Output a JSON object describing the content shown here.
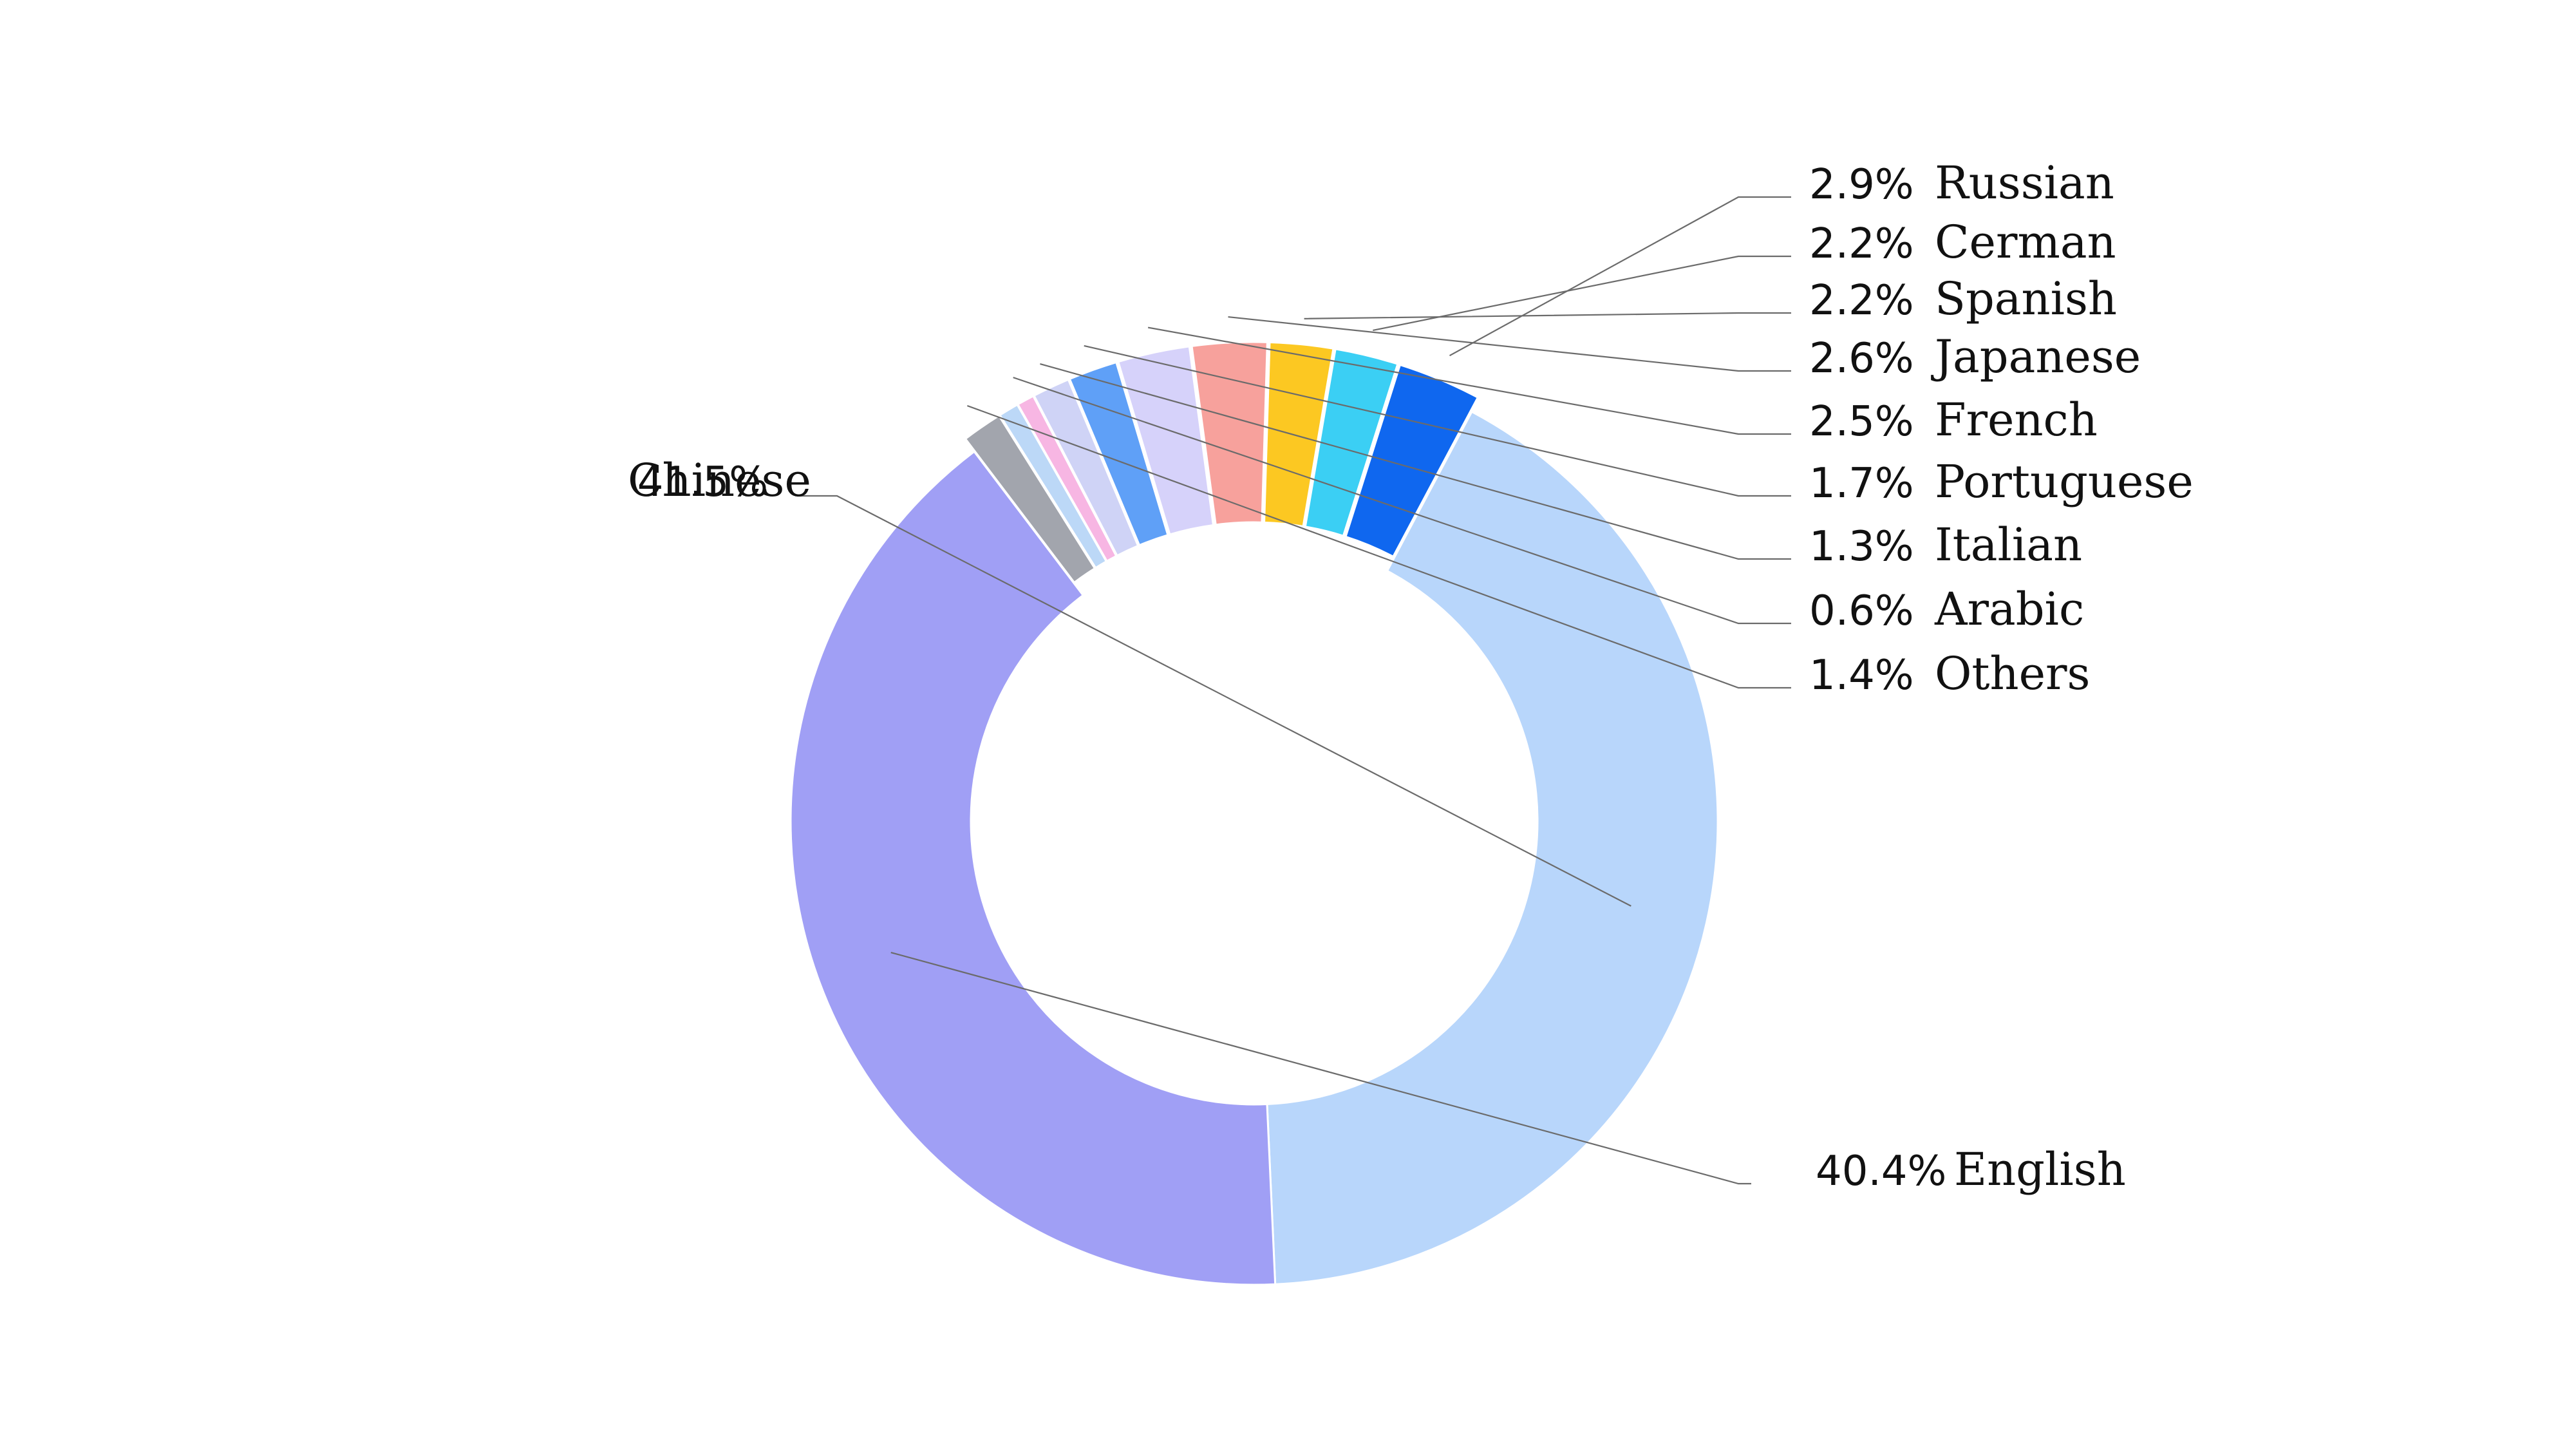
{
  "chart_data": {
    "type": "pie",
    "variant": "donut",
    "title": "",
    "legend": "none",
    "slices": [
      {
        "label": "Chinese",
        "value_label": "41.5%",
        "value": 41.5,
        "color": "#b8d6fb"
      },
      {
        "label": "English",
        "value_label": "40.4%",
        "value": 40.4,
        "color": "#a09ff5"
      },
      {
        "label": "Others",
        "value_label": "1.4%",
        "value": 1.4,
        "color": "#a2a5ad"
      },
      {
        "label": "",
        "value_label": "",
        "value": 0.7,
        "color": "#bcd8f7"
      },
      {
        "label": "Arabic",
        "value_label": "0.6%",
        "value": 0.6,
        "color": "#f7b6e3"
      },
      {
        "label": "Italian",
        "value_label": "1.3%",
        "value": 1.3,
        "color": "#cfd3f6"
      },
      {
        "label": "Portuguese",
        "value_label": "1.7%",
        "value": 1.7,
        "color": "#5fa0f7"
      },
      {
        "label": "French",
        "value_label": "2.5%",
        "value": 2.5,
        "color": "#d6d2fa"
      },
      {
        "label": "Japanese",
        "value_label": "2.6%",
        "value": 2.6,
        "color": "#f7a19c"
      },
      {
        "label": "Spanish",
        "value_label": "2.2%",
        "value": 2.2,
        "color": "#fcc822"
      },
      {
        "label": "Cerman",
        "value_label": "2.2%",
        "value": 2.2,
        "color": "#3bcff4"
      },
      {
        "label": "Russian",
        "value_label": "2.9%",
        "value": 2.9,
        "color": "#0f67ef"
      }
    ]
  }
}
